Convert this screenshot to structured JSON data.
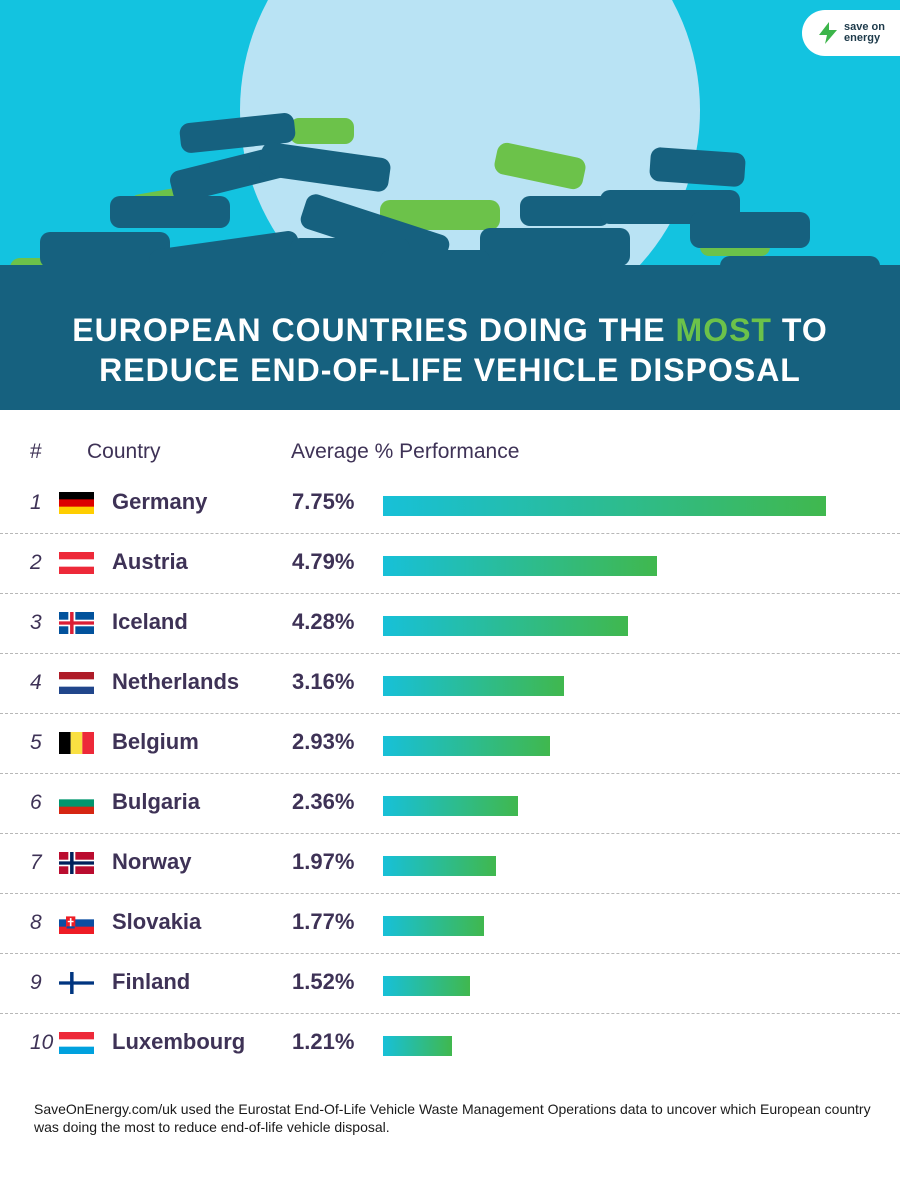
{
  "brand": {
    "logo_line1": "save on",
    "logo_line2": "energy"
  },
  "header": {
    "title_line1_pre": "EUROPEAN COUNTRIES DOING THE ",
    "title_line1_accent": "MOST",
    "title_line1_post": " TO",
    "title_line2": "REDUCE END-OF-LIFE VEHICLE DISPOSAL"
  },
  "columns": {
    "rank": "#",
    "country": "Country",
    "value": "Average % Performance"
  },
  "chart_data": {
    "type": "bar",
    "categories": [
      "Germany",
      "Austria",
      "Iceland",
      "Netherlands",
      "Belgium",
      "Bulgaria",
      "Norway",
      "Slovakia",
      "Finland",
      "Luxembourg"
    ],
    "values": [
      7.75,
      4.79,
      4.28,
      3.16,
      2.93,
      2.36,
      1.97,
      1.77,
      1.52,
      1.21
    ],
    "value_labels": [
      "7.75%",
      "4.79%",
      "4.28%",
      "3.16%",
      "2.93%",
      "2.36%",
      "1.97%",
      "1.77%",
      "1.52%",
      "1.21%"
    ],
    "ranks": [
      "1",
      "2",
      "3",
      "4",
      "5",
      "6",
      "7",
      "8",
      "9",
      "10"
    ],
    "flags": [
      "germany-flag-icon",
      "austria-flag-icon",
      "iceland-flag-icon",
      "netherlands-flag-icon",
      "belgium-flag-icon",
      "bulgaria-flag-icon",
      "norway-flag-icon",
      "slovakia-flag-icon",
      "finland-flag-icon",
      "luxembourg-flag-icon"
    ],
    "bar_colors": [
      "#17c0d8",
      "#40b84e"
    ],
    "title": "EUROPEAN COUNTRIES DOING THE MOST TO REDUCE END-OF-LIFE VEHICLE DISPOSAL"
  },
  "footnote": "SaveOnEnergy.com/uk used the Eurostat End-Of-Life Vehicle Waste Management Operations data to uncover which European country was doing the most to reduce end-of-life vehicle disposal."
}
